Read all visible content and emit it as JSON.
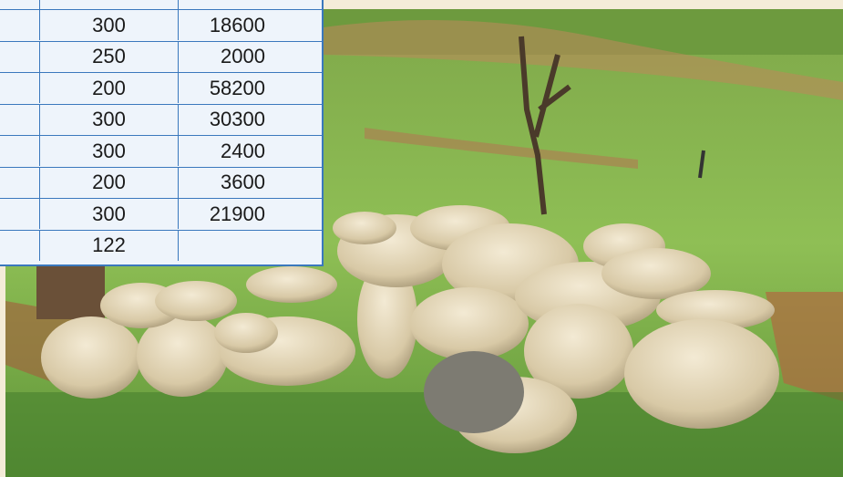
{
  "table": {
    "rows": [
      [
        "300",
        "18600"
      ],
      [
        "250",
        "2000"
      ],
      [
        "200",
        "58200"
      ],
      [
        "300",
        "30300"
      ],
      [
        "300",
        "2400"
      ],
      [
        "200",
        "3600"
      ],
      [
        "300",
        "21900"
      ],
      [
        "122"
      ]
    ]
  }
}
